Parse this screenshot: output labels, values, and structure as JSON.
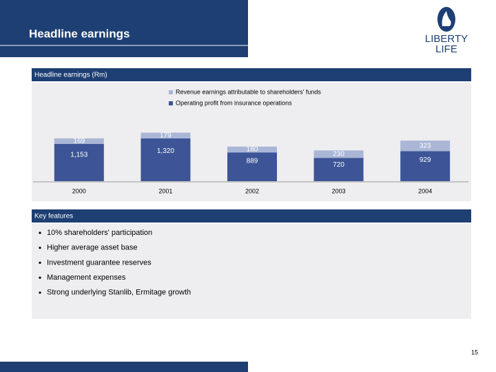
{
  "header": {
    "title": "Headline earnings",
    "logo": [
      "LIBERTY",
      "LIFE"
    ]
  },
  "chart_data": {
    "type": "stacked_bar",
    "title": "Headline earnings (Rm)",
    "categories": [
      "2000",
      "2001",
      "2002",
      "2003",
      "2004"
    ],
    "series": [
      {
        "name": "Operating profit from insurance operations",
        "color": "#3d5596",
        "values": [
          1153,
          1320,
          889,
          720,
          929
        ],
        "value_labels": [
          "1,153",
          "1,320",
          "889",
          "720",
          "929"
        ]
      },
      {
        "name": "Revenue earnings attributable to shareholders' funds",
        "color": "#aab6d6",
        "values": [
          169,
          179,
          180,
          230,
          323
        ]
      }
    ]
  },
  "key_features": {
    "title": "Key features",
    "items": [
      "10% shareholders' participation",
      "Higher average asset base",
      "Investment guarantee reserves",
      "Management expenses",
      "Strong underlying Stanlib, Ermitage growth"
    ]
  },
  "page_number": "15"
}
